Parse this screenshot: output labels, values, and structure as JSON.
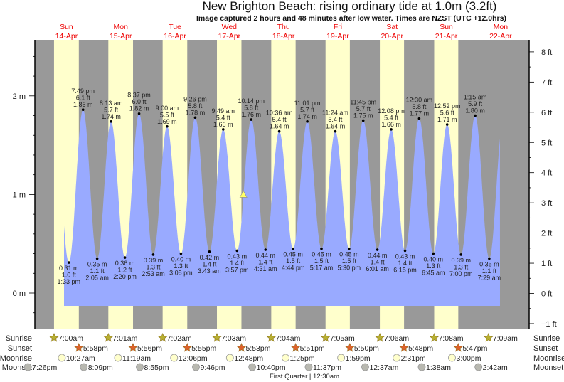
{
  "header": {
    "title": "New Brighton Beach: rising  ordinary tide at 1.0m (3.2ft)",
    "subtitle": "Image captured 2 hours and 48 minutes after low water. Times are NZST (UTC +12.0hrs)"
  },
  "chart_data": {
    "type": "area",
    "days": [
      {
        "weekday": "Sun",
        "date": "14-Apr"
      },
      {
        "weekday": "Mon",
        "date": "15-Apr"
      },
      {
        "weekday": "Tue",
        "date": "16-Apr"
      },
      {
        "weekday": "Wed",
        "date": "17-Apr"
      },
      {
        "weekday": "Thu",
        "date": "18-Apr"
      },
      {
        "weekday": "Fri",
        "date": "19-Apr"
      },
      {
        "weekday": "Sat",
        "date": "20-Apr"
      },
      {
        "weekday": "Sun",
        "date": "21-Apr"
      },
      {
        "weekday": "Mon",
        "date": "22-Apr"
      }
    ],
    "y_left": {
      "unit": "m",
      "ticks": [
        "0 m",
        "1 m",
        "2 m"
      ],
      "values": [
        0,
        1,
        2
      ]
    },
    "y_right": {
      "unit": "ft",
      "ticks": [
        "−1 ft",
        "0 ft",
        "1 ft",
        "2 ft",
        "3 ft",
        "4 ft",
        "5 ft",
        "6 ft",
        "7 ft",
        "8 ft"
      ],
      "values": [
        -1,
        0,
        1,
        2,
        3,
        4,
        5,
        6,
        7,
        8
      ]
    },
    "ylim_m": [
      -0.37,
      2.57
    ],
    "current": {
      "state": "rising",
      "level_m": 1.0,
      "level_ft": 3.2,
      "after_low": "2 hours and 48 minutes"
    },
    "extremes": [
      {
        "date": "14-Apr",
        "type": "low",
        "time": "1:33 pm",
        "m": "0.31 m",
        "ft": "1.0 ft"
      },
      {
        "date": "14-Apr",
        "type": "high",
        "time": "7:49 pm",
        "m": "1.86 m",
        "ft": "6.1 ft"
      },
      {
        "date": "15-Apr",
        "type": "low",
        "time": "2:05 am",
        "m": "0.35 m",
        "ft": "1.1 ft"
      },
      {
        "date": "15-Apr",
        "type": "high",
        "time": "8:13 am",
        "m": "1.74 m",
        "ft": "5.7 ft"
      },
      {
        "date": "15-Apr",
        "type": "low",
        "time": "2:20 pm",
        "m": "0.36 m",
        "ft": "1.2 ft"
      },
      {
        "date": "15-Apr",
        "type": "high",
        "time": "8:37 pm",
        "m": "1.82 m",
        "ft": "6.0 ft"
      },
      {
        "date": "16-Apr",
        "type": "low",
        "time": "2:53 am",
        "m": "0.39 m",
        "ft": "1.3 ft"
      },
      {
        "date": "16-Apr",
        "type": "high",
        "time": "9:00 am",
        "m": "1.69 m",
        "ft": "5.5 ft"
      },
      {
        "date": "16-Apr",
        "type": "low",
        "time": "3:08 pm",
        "m": "0.40 m",
        "ft": "1.3 ft"
      },
      {
        "date": "16-Apr",
        "type": "high",
        "time": "9:26 pm",
        "m": "1.78 m",
        "ft": "5.8 ft"
      },
      {
        "date": "17-Apr",
        "type": "low",
        "time": "3:43 am",
        "m": "0.42 m",
        "ft": "1.4 ft"
      },
      {
        "date": "17-Apr",
        "type": "high",
        "time": "9:49 am",
        "m": "1.66 m",
        "ft": "5.4 ft"
      },
      {
        "date": "17-Apr",
        "type": "low",
        "time": "3:57 pm",
        "m": "0.43 m",
        "ft": "1.4 ft"
      },
      {
        "date": "17-Apr",
        "type": "high",
        "time": "10:14 pm",
        "m": "1.76 m",
        "ft": "5.8 ft"
      },
      {
        "date": "18-Apr",
        "type": "low",
        "time": "4:31 am",
        "m": "0.44 m",
        "ft": "1.4 ft"
      },
      {
        "date": "18-Apr",
        "type": "high",
        "time": "10:36 am",
        "m": "1.64 m",
        "ft": "5.4 ft"
      },
      {
        "date": "18-Apr",
        "type": "low",
        "time": "4:44 pm",
        "m": "0.45 m",
        "ft": "1.5 ft"
      },
      {
        "date": "18-Apr",
        "type": "high",
        "time": "11:01 pm",
        "m": "1.74 m",
        "ft": "5.7 ft"
      },
      {
        "date": "19-Apr",
        "type": "low",
        "time": "5:17 am",
        "m": "0.45 m",
        "ft": "1.5 ft"
      },
      {
        "date": "19-Apr",
        "type": "high",
        "time": "11:24 am",
        "m": "1.64 m",
        "ft": "5.4 ft"
      },
      {
        "date": "19-Apr",
        "type": "low",
        "time": "5:30 pm",
        "m": "0.45 m",
        "ft": "1.5 ft"
      },
      {
        "date": "19-Apr",
        "type": "high",
        "time": "11:45 pm",
        "m": "1.75 m",
        "ft": "5.7 ft"
      },
      {
        "date": "20-Apr",
        "type": "low",
        "time": "6:01 am",
        "m": "0.44 m",
        "ft": "1.4 ft"
      },
      {
        "date": "20-Apr",
        "type": "high",
        "time": "12:08 pm",
        "m": "1.66 m",
        "ft": "5.4 ft"
      },
      {
        "date": "20-Apr",
        "type": "low",
        "time": "6:15 pm",
        "m": "0.43 m",
        "ft": "1.4 ft"
      },
      {
        "date": "21-Apr",
        "type": "high",
        "time": "12:30 am",
        "m": "1.77 m",
        "ft": "5.8 ft"
      },
      {
        "date": "21-Apr",
        "type": "low",
        "time": "6:45 am",
        "m": "0.40 m",
        "ft": "1.3 ft"
      },
      {
        "date": "21-Apr",
        "type": "high",
        "time": "12:52 pm",
        "m": "1.71 m",
        "ft": "5.6 ft"
      },
      {
        "date": "21-Apr",
        "type": "low",
        "time": "7:00 pm",
        "m": "0.39 m",
        "ft": "1.3 ft"
      },
      {
        "date": "22-Apr",
        "type": "high",
        "time": "1:15 am",
        "m": "1.80 m",
        "ft": "5.9 ft"
      },
      {
        "date": "22-Apr",
        "type": "low",
        "time": "7:29 am",
        "m": "0.35 m",
        "ft": "1.1 ft"
      }
    ]
  },
  "astro": {
    "labels": {
      "sunrise": "Sunrise",
      "sunset": "Sunset",
      "moonrise": "Moonrise",
      "moonset": "Moonset"
    },
    "sunrise": [
      "7:00am",
      "7:01am",
      "7:02am",
      "7:03am",
      "7:04am",
      "7:05am",
      "7:06am",
      "7:08am",
      "7:09am"
    ],
    "sunset": [
      "5:58pm",
      "5:56pm",
      "5:55pm",
      "5:53pm",
      "5:51pm",
      "5:50pm",
      "5:48pm",
      "5:47pm"
    ],
    "moonrise": [
      "10:27am",
      "11:19am",
      "12:06pm",
      "12:48pm",
      "1:25pm",
      "1:59pm",
      "2:31pm",
      "3:00pm"
    ],
    "moonset": [
      "7:26pm",
      "8:09pm",
      "8:55pm",
      "9:46pm",
      "10:40pm",
      "11:37pm",
      "12:37am",
      "1:38am",
      "2:42am"
    ],
    "moon_phase": "First Quarter | 12:30am"
  },
  "colors": {
    "night": "#999999",
    "day": "#ffffcc",
    "water": "#99aaff",
    "day_label": "#ee0000",
    "sunrise_star": "#b8b030",
    "sunset_star": "#e0602a",
    "moonrise": "#ffffcc",
    "moonset": "#b8b8b0",
    "marker": "#ffff66"
  }
}
